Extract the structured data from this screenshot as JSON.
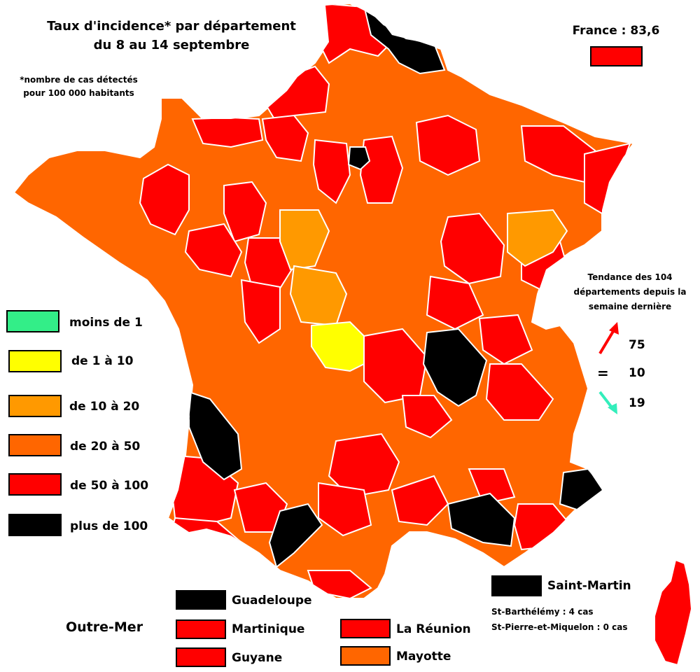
{
  "title_line1": "Taux d'incidence* par département",
  "title_line2": "du 8 au 14 septembre",
  "footnote_line1": "*nombre de cas détectés",
  "footnote_line2": "pour 100 000 habitants",
  "france_label": "France : 83,6",
  "colors": {
    "lt1": "#33ee88",
    "r1_10": "#ffff00",
    "r10_20": "#ff9900",
    "r20_50": "#ff6600",
    "r50_100": "#ff0000",
    "gt100": "#000000",
    "france": "#ff0000",
    "arrow_up": "#ff0000",
    "arrow_down": "#33eebb"
  },
  "legend": [
    {
      "label": "moins de 1"
    },
    {
      "label": "de 1 à 10"
    },
    {
      "label": "de 10 à 20"
    },
    {
      "label": "de 20 à 50"
    },
    {
      "label": "de 50 à 100"
    },
    {
      "label": "plus de 100"
    }
  ],
  "trend": {
    "title_line1": "Tendance des 104",
    "title_line2": "départements depuis la",
    "title_line3": "semaine dernière",
    "up": "75",
    "equal_symbol": "=",
    "equal": "10",
    "down": "19"
  },
  "outre_mer": {
    "title": "Outre-Mer",
    "guadeloupe": "Guadeloupe",
    "martinique": "Martinique",
    "guyane": "Guyane",
    "reunion": "La Réunion",
    "mayotte": "Mayotte",
    "saint_martin": "Saint-Martin",
    "st_barthelemy": "St-Barthélémy : 4 cas",
    "st_pierre": "St-Pierre-et-Miquelon : 0 cas"
  }
}
